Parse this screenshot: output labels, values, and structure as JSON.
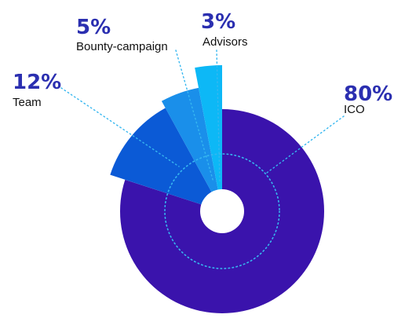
{
  "chart_data": {
    "type": "pie",
    "style": "exploded-donut",
    "title": "",
    "slices": [
      {
        "label": "ICO",
        "value": 80,
        "value_text": "80%",
        "color": "#3a13ac"
      },
      {
        "label": "Team",
        "value": 12,
        "value_text": "12%",
        "color": "#0b5ad6"
      },
      {
        "label": "Bounty-campaign",
        "value": 5,
        "value_text": "5%",
        "color": "#1a8fea"
      },
      {
        "label": "Advisors",
        "value": 3,
        "value_text": "3%",
        "color": "#0db8f6"
      }
    ],
    "label_color": "#2b2fb0",
    "leader_color": "#36b7f0",
    "legend": "none"
  }
}
